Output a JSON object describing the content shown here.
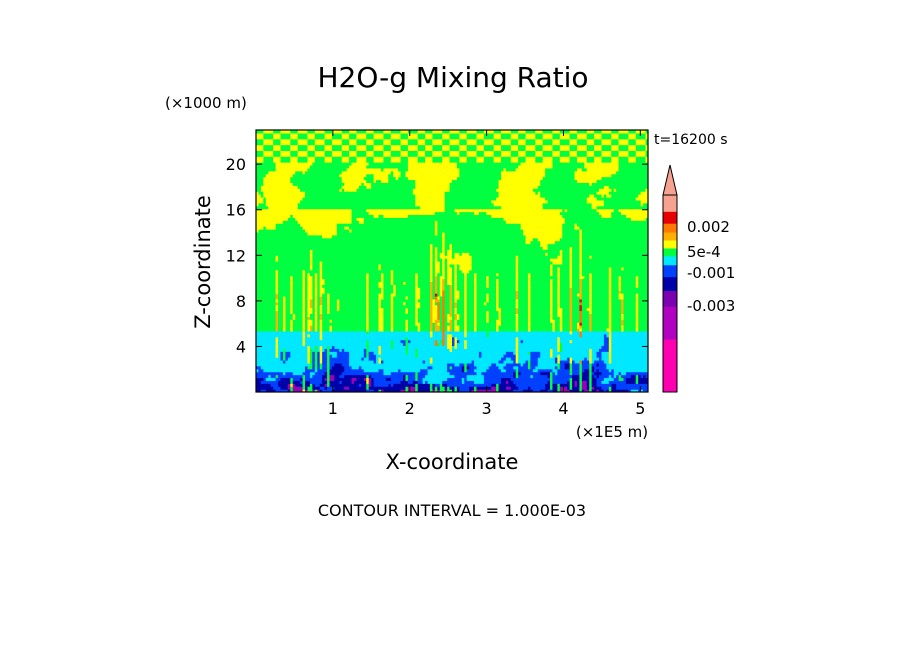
{
  "chart_data": {
    "type": "heatmap",
    "title": "H2O-g Mixing Ratio",
    "time_label": "t=16200 s",
    "xlabel": "X-coordinate",
    "ylabel": "Z-coordinate",
    "x_unit": "(×1E5 m)",
    "y_unit": "(×1000 m)",
    "x_ticks": [
      "1",
      "2",
      "3",
      "4",
      "5"
    ],
    "y_ticks": [
      "4",
      "8",
      "12",
      "16",
      "20"
    ],
    "xlim": [
      0,
      5.1
    ],
    "ylim": [
      0,
      23
    ],
    "footer": "CONTOUR INTERVAL = 1.000E-03",
    "colorbar": {
      "labels": [
        "0.002",
        "5e-4",
        "-0.001",
        "-0.003"
      ],
      "colors": [
        "#f7a190",
        "#e60000",
        "#ff7a00",
        "#ffb000",
        "#ffff00",
        "#00ff40",
        "#00e8ff",
        "#0040ff",
        "#0000a8",
        "#7a00b0",
        "#b000c0",
        "#ff00b0"
      ]
    },
    "grid": false
  }
}
